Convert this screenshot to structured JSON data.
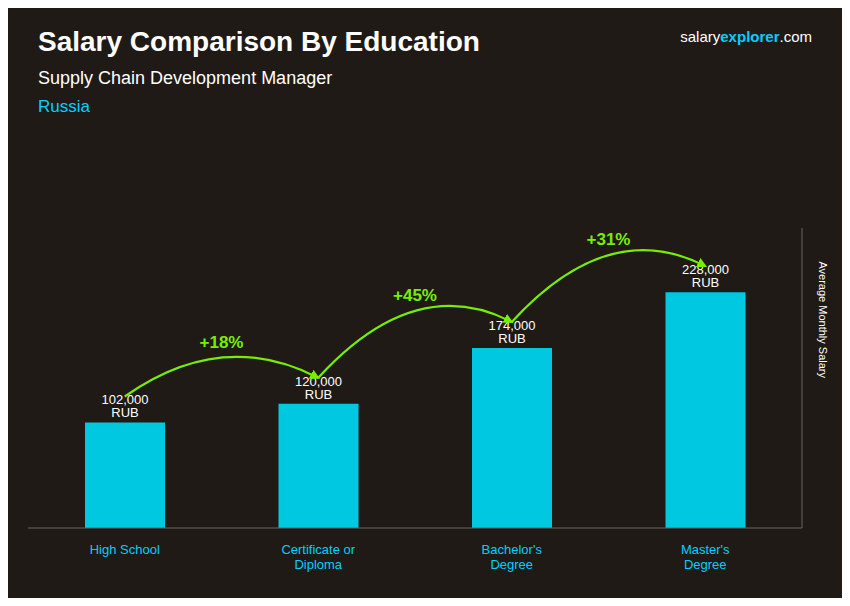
{
  "chart_data": {
    "type": "bar",
    "title": "Salary Comparison By Education",
    "subtitle": "Supply Chain Development Manager",
    "country": "Russia",
    "brand": [
      "salary",
      "explorer",
      ".com"
    ],
    "ylabel": "Average Monthly Salary",
    "categories": [
      "High School",
      "Certificate or\nDiploma",
      "Bachelor's\nDegree",
      "Master's\nDegree"
    ],
    "values": [
      102000,
      120000,
      174000,
      228000
    ],
    "value_labels": [
      "102,000 RUB",
      "120,000 RUB",
      "174,000 RUB",
      "228,000 RUB"
    ],
    "data_labels": true,
    "annotations": [
      "+18%",
      "+45%",
      "+31%"
    ],
    "color": "#00c8e0",
    "ylim": [
      0,
      290000
    ],
    "tick_labels": "x",
    "grid": false
  }
}
